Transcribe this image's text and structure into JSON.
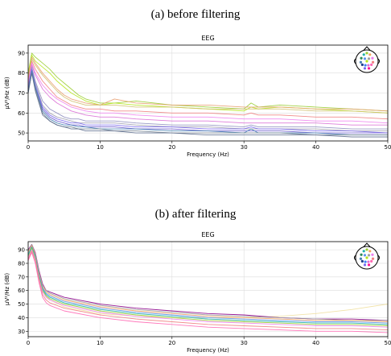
{
  "figure": {
    "captions": [
      "(a) before filtering",
      "(b) after filtering"
    ]
  },
  "chart_data": [
    {
      "type": "line",
      "title": "EEG",
      "xlabel": "Frequency (Hz)",
      "ylabel": "μV²/Hz (dB)",
      "xlim": [
        0,
        50
      ],
      "ylim": [
        46,
        94
      ],
      "xticks": [
        0,
        10,
        20,
        30,
        40,
        50
      ],
      "yticks": [
        50,
        60,
        70,
        80,
        90
      ],
      "grid": true,
      "legend": "sensor-head-inset top-right",
      "x": [
        0,
        0.5,
        1,
        2,
        3,
        4,
        5,
        6,
        7,
        8,
        10,
        12,
        15,
        20,
        25,
        30,
        31,
        32,
        35,
        40,
        45,
        50
      ],
      "series": [
        {
          "color": "#9acd32",
          "values": [
            80,
            90,
            88,
            85,
            82,
            78,
            75,
            72,
            69,
            67,
            65,
            65,
            66,
            64,
            63,
            62,
            65,
            63,
            64,
            63,
            62,
            61
          ]
        },
        {
          "color": "#b5e61d",
          "values": [
            79,
            89,
            86,
            83,
            80,
            76,
            73,
            70,
            68,
            66,
            64,
            65,
            64,
            63,
            62,
            61,
            63,
            62,
            63,
            62,
            61,
            60
          ]
        },
        {
          "color": "#e8a070",
          "values": [
            78,
            88,
            85,
            80,
            76,
            72,
            69,
            67,
            66,
            65,
            64,
            67,
            65,
            64,
            64,
            63,
            63,
            63,
            63,
            62,
            62,
            61
          ]
        },
        {
          "color": "#d0c070",
          "values": [
            77,
            87,
            84,
            79,
            75,
            71,
            68,
            66,
            65,
            64,
            64,
            64,
            63,
            63,
            62,
            62,
            62,
            62,
            62,
            61,
            61,
            60
          ]
        },
        {
          "color": "#f08080",
          "values": [
            76,
            86,
            82,
            76,
            72,
            68,
            66,
            64,
            63,
            62,
            62,
            61,
            61,
            60,
            60,
            59,
            60,
            59,
            59,
            58,
            58,
            57
          ]
        },
        {
          "color": "#ee82ee",
          "values": [
            75,
            85,
            80,
            74,
            70,
            67,
            65,
            63,
            62,
            61,
            60,
            60,
            59,
            58,
            58,
            57,
            57,
            57,
            57,
            56,
            56,
            55
          ]
        },
        {
          "color": "#da70d6",
          "values": [
            74,
            84,
            79,
            72,
            68,
            65,
            63,
            61,
            60,
            59,
            58,
            58,
            57,
            56,
            56,
            55,
            55,
            55,
            55,
            55,
            54,
            54
          ]
        },
        {
          "color": "#9090c0",
          "values": [
            73,
            83,
            76,
            66,
            62,
            60,
            58,
            57,
            57,
            56,
            56,
            56,
            55,
            54,
            54,
            53,
            54,
            53,
            53,
            53,
            52,
            52
          ]
        },
        {
          "color": "#a0a0b0",
          "values": [
            72,
            82,
            75,
            64,
            60,
            58,
            57,
            56,
            55,
            55,
            55,
            55,
            54,
            53,
            53,
            52,
            52,
            52,
            52,
            52,
            51,
            51
          ]
        },
        {
          "color": "#7b68ee",
          "values": [
            72,
            82,
            74,
            63,
            59,
            57,
            56,
            55,
            55,
            54,
            54,
            54,
            53,
            53,
            52,
            52,
            53,
            52,
            52,
            51,
            51,
            50
          ]
        },
        {
          "color": "#6a5acd",
          "values": [
            71,
            81,
            73,
            62,
            58,
            56,
            55,
            54,
            54,
            53,
            53,
            53,
            52,
            52,
            51,
            51,
            51,
            51,
            51,
            50,
            50,
            50
          ]
        },
        {
          "color": "#4682b4",
          "values": [
            71,
            81,
            73,
            61,
            57,
            55,
            54,
            54,
            53,
            53,
            52,
            52,
            52,
            51,
            51,
            50,
            52,
            50,
            50,
            50,
            49,
            49
          ]
        },
        {
          "color": "#708090",
          "values": [
            70,
            80,
            72,
            60,
            56,
            54,
            53,
            53,
            52,
            52,
            52,
            51,
            51,
            50,
            50,
            50,
            50,
            50,
            50,
            49,
            49,
            49
          ]
        },
        {
          "color": "#5f6f8f",
          "values": [
            70,
            80,
            71,
            59,
            56,
            54,
            53,
            52,
            52,
            51,
            51,
            51,
            50,
            50,
            49,
            49,
            49,
            49,
            49,
            49,
            48,
            48
          ]
        }
      ]
    },
    {
      "type": "line",
      "title": "EEG",
      "xlabel": "Frequency (Hz)",
      "ylabel": "μV²/Hz (dB)",
      "xlim": [
        0,
        50
      ],
      "ylim": [
        26,
        96
      ],
      "xticks": [
        0,
        10,
        20,
        30,
        40,
        50
      ],
      "yticks": [
        30,
        40,
        50,
        60,
        70,
        80,
        90
      ],
      "grid": true,
      "legend": "sensor-head-inset top-right",
      "x": [
        0,
        0.5,
        1,
        1.5,
        2,
        2.5,
        3,
        5,
        10,
        15,
        20,
        25,
        30,
        35,
        40,
        45,
        50
      ],
      "series": [
        {
          "color": "#f0e0a0",
          "values": [
            88,
            93,
            86,
            72,
            62,
            56,
            53,
            48,
            43,
            41,
            40,
            40,
            40,
            41,
            43,
            46,
            50
          ]
        },
        {
          "color": "#8b008b",
          "values": [
            90,
            94,
            88,
            75,
            65,
            60,
            59,
            55,
            50,
            47,
            45,
            43,
            42,
            40,
            39,
            39,
            38
          ]
        },
        {
          "color": "#a0a0a0",
          "values": [
            89,
            94,
            87,
            74,
            64,
            60,
            58,
            54,
            49,
            46,
            44,
            42,
            41,
            40,
            39,
            38,
            38
          ]
        },
        {
          "color": "#f4a460",
          "values": [
            88,
            93,
            87,
            73,
            63,
            59,
            57,
            53,
            48,
            45,
            43,
            41,
            40,
            39,
            38,
            38,
            37
          ]
        },
        {
          "color": "#6495ed",
          "values": [
            87,
            92,
            86,
            72,
            62,
            58,
            56,
            52,
            47,
            44,
            42,
            40,
            39,
            38,
            37,
            37,
            36
          ]
        },
        {
          "color": "#20b2aa",
          "values": [
            86,
            92,
            85,
            71,
            61,
            57,
            55,
            51,
            46,
            43,
            41,
            39,
            38,
            37,
            36,
            36,
            35
          ]
        },
        {
          "color": "#9acd32",
          "values": [
            85,
            91,
            84,
            70,
            60,
            56,
            54,
            50,
            45,
            42,
            40,
            38,
            37,
            36,
            35,
            35,
            34
          ]
        },
        {
          "color": "#ee82ee",
          "values": [
            84,
            90,
            83,
            69,
            59,
            55,
            53,
            49,
            44,
            41,
            39,
            37,
            36,
            35,
            34,
            34,
            33
          ]
        },
        {
          "color": "#f08080",
          "values": [
            83,
            89,
            82,
            68,
            57,
            53,
            51,
            47,
            42,
            39,
            37,
            35,
            34,
            33,
            32,
            32,
            31
          ]
        },
        {
          "color": "#ff69b4",
          "values": [
            82,
            88,
            80,
            66,
            55,
            51,
            49,
            45,
            40,
            37,
            35,
            33,
            32,
            31,
            30,
            30,
            29
          ]
        }
      ]
    }
  ]
}
